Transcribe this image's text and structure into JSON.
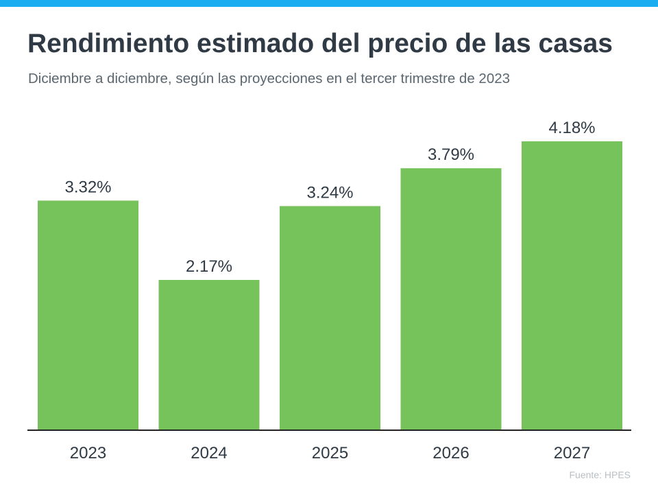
{
  "header": {
    "title": "Rendimiento estimado del precio de las casas",
    "subtitle": "Diciembre a diciembre, según las proyecciones en el tercer trimestre de 2023"
  },
  "footer": {
    "source": "Fuente:  HPES"
  },
  "colors": {
    "accent_bar": "#1aaef0",
    "bar": "#77c35b",
    "axis": "#222222"
  },
  "chart_data": {
    "type": "bar",
    "title": "Rendimiento estimado del precio de las casas",
    "subtitle": "Diciembre a diciembre, según las proyecciones en el tercer trimestre de 2023",
    "xlabel": "",
    "ylabel": "",
    "categories": [
      "2023",
      "2024",
      "2025",
      "2026",
      "2027"
    ],
    "values": [
      3.32,
      2.17,
      3.24,
      3.79,
      4.18
    ],
    "value_labels": [
      "3.32%",
      "2.17%",
      "3.24%",
      "3.79%",
      "4.18%"
    ],
    "ylim": [
      0,
      4.18
    ],
    "grid": false,
    "legend": "none"
  }
}
